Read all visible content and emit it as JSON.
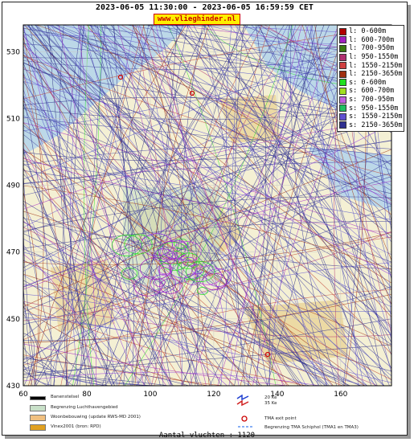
{
  "header": {
    "title": "2023-06-05 11:30:00 - 2023-06-05 16:59:59 CET",
    "site": "www.vlieghinder.nl"
  },
  "chart_data": {
    "type": "map",
    "y_ticks": [
      "530",
      "510",
      "490",
      "470",
      "450",
      "430"
    ],
    "x_ticks": [
      "60",
      "80",
      "100",
      "120",
      "140",
      "160"
    ],
    "ylim": [
      430,
      538
    ],
    "xlim": [
      60,
      176
    ],
    "legend": [
      {
        "label": "l: 0-600m",
        "color": "#b00000"
      },
      {
        "label": "l: 600-700m",
        "color": "#a020c0"
      },
      {
        "label": "l: 700-950m",
        "color": "#3a7a10"
      },
      {
        "label": "l: 950-1550m",
        "color": "#b03070"
      },
      {
        "label": "l: 1550-2150m",
        "color": "#d04040"
      },
      {
        "label": "l: 2150-3650m",
        "color": "#a03010"
      },
      {
        "label": "s: 0-600m",
        "color": "#20e020"
      },
      {
        "label": "s: 600-700m",
        "color": "#a0e020"
      },
      {
        "label": "s: 700-950m",
        "color": "#c060e0"
      },
      {
        "label": "s: 950-1550m",
        "color": "#20c060"
      },
      {
        "label": "s: 1550-2150m",
        "color": "#6050d0"
      },
      {
        "label": "s: 2150-3650m",
        "color": "#303090"
      }
    ],
    "flights": 1120
  },
  "footer": {
    "items": [
      {
        "label": "Banenstelsel",
        "color": "#000000"
      },
      {
        "label": "Begrenzing Luchthavengebied",
        "color": "#c8e0c8"
      },
      {
        "label": "Woonbebouwing (update RWS-MD 2001)",
        "color": "#f0c080"
      },
      {
        "label": "Vinex2001 (bron: RPD)",
        "color": "#e0a020"
      }
    ],
    "right_items": [
      {
        "label": "20 Ke"
      },
      {
        "label": "35 Ke"
      },
      {
        "label": "TMA exit point"
      },
      {
        "label": "Begrenzing TMA Schiphol  (TMA1 en TMA3)"
      }
    ],
    "count_text": "Aantal vluchten : 1120"
  }
}
